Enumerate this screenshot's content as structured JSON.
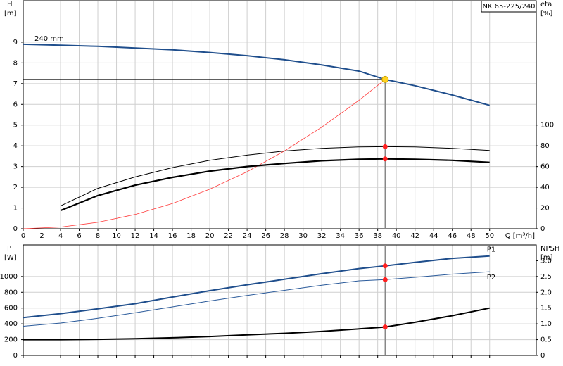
{
  "chart_data": [
    {
      "type": "line",
      "title": "NK 65-225/240",
      "x_label": "Q [m³/h]",
      "y_label": "H",
      "y_unit": "[m]",
      "y2_label": "eta",
      "y2_unit": "[%]",
      "xlim": [
        0,
        55
      ],
      "xticks": [
        0,
        2,
        4,
        6,
        8,
        10,
        12,
        14,
        16,
        18,
        20,
        22,
        24,
        26,
        28,
        30,
        32,
        34,
        36,
        38,
        40,
        42,
        44,
        46,
        48,
        50
      ],
      "ylim": [
        0,
        11
      ],
      "yticks": [
        0,
        1,
        2,
        3,
        4,
        5,
        6,
        7,
        8,
        9
      ],
      "y2lim": [
        0,
        220
      ],
      "y2ticks": [
        0,
        20,
        40,
        60,
        80,
        100
      ],
      "grid": true,
      "operating_point": {
        "x": 38.8,
        "y": 7.2,
        "color": "#ffd21f"
      },
      "series": [
        {
          "name": "240 mm",
          "color": "#1f4e8c",
          "width": 2,
          "x": [
            0,
            4,
            8,
            12,
            16,
            20,
            24,
            28,
            32,
            36,
            38.8,
            42,
            46,
            50
          ],
          "values": [
            8.9,
            8.85,
            8.8,
            8.72,
            8.63,
            8.5,
            8.35,
            8.15,
            7.9,
            7.6,
            7.2,
            6.9,
            6.45,
            5.95
          ]
        },
        {
          "color": "#ff3b3b",
          "width": 0.8,
          "x": [
            0,
            4,
            8,
            12,
            16,
            20,
            24,
            28,
            32,
            36,
            38.8
          ],
          "values": [
            0,
            0.08,
            0.31,
            0.69,
            1.22,
            1.91,
            2.75,
            3.75,
            4.9,
            6.2,
            7.2
          ]
        },
        {
          "axis": "y2",
          "color": "#000000",
          "width": 1,
          "dot": "#ff2020",
          "x": [
            4,
            8,
            12,
            16,
            20,
            24,
            28,
            32,
            36,
            38.8,
            42,
            46,
            50
          ],
          "values": [
            22,
            39,
            50,
            59,
            66,
            71,
            75,
            77.6,
            79,
            79.2,
            79,
            77.6,
            75.6
          ]
        },
        {
          "axis": "y2",
          "color": "#000000",
          "width": 2.2,
          "dot": "#ff2020",
          "x": [
            4,
            8,
            12,
            16,
            20,
            24,
            28,
            32,
            36,
            38.8,
            42,
            46,
            50
          ],
          "values": [
            17.6,
            32,
            42,
            49.6,
            55.6,
            60,
            63,
            65.6,
            67,
            67.4,
            67,
            66,
            64
          ]
        }
      ]
    },
    {
      "type": "line",
      "y_label": "P",
      "y_unit": "[W]",
      "y2_label": "NPSH",
      "y2_unit": "[m]",
      "xlim": [
        0,
        55
      ],
      "xticks": [
        0,
        2,
        4,
        6,
        8,
        10,
        12,
        14,
        16,
        18,
        20,
        22,
        24,
        26,
        28,
        30,
        32,
        34,
        36,
        38,
        40,
        42,
        44,
        46,
        48,
        50
      ],
      "ylim": [
        0,
        1400
      ],
      "yticks": [
        0,
        200,
        400,
        600,
        800,
        1000
      ],
      "y2lim": [
        0,
        3.5
      ],
      "y2ticks": [
        0,
        0.5,
        {
          "value": 1,
          "label": "1.0"
        },
        1.5,
        {
          "value": 2,
          "label": "2.0"
        },
        2.5,
        {
          "value": 3,
          "label": "3.0"
        }
      ],
      "grid": true,
      "operating_point": {
        "x": 38.8
      },
      "series": [
        {
          "name": "P1",
          "color": "#1f4e8c",
          "width": 2,
          "dot": "#ff2020",
          "x": [
            0,
            4,
            8,
            12,
            16,
            20,
            24,
            28,
            32,
            36,
            38.8,
            42,
            46,
            50
          ],
          "values": [
            480,
            530,
            590,
            655,
            740,
            820,
            895,
            965,
            1035,
            1100,
            1135,
            1180,
            1230,
            1260
          ]
        },
        {
          "name": "P2",
          "color": "#2a5a9a",
          "width": 1,
          "dot": "#ff2020",
          "x": [
            0,
            4,
            8,
            12,
            16,
            20,
            24,
            28,
            32,
            36,
            38.8,
            42,
            46,
            50
          ],
          "values": [
            370,
            410,
            470,
            540,
            615,
            690,
            760,
            825,
            890,
            945,
            960,
            990,
            1030,
            1060
          ]
        },
        {
          "axis": "y2",
          "color": "#000000",
          "width": 2,
          "dot": "#ff2020",
          "x": [
            0,
            4,
            8,
            12,
            16,
            20,
            24,
            28,
            32,
            36,
            38.8,
            42,
            46,
            50
          ],
          "values": [
            0.5,
            0.5,
            0.51,
            0.53,
            0.56,
            0.6,
            0.65,
            0.7,
            0.76,
            0.84,
            0.9,
            1.05,
            1.26,
            1.5
          ]
        }
      ]
    }
  ]
}
